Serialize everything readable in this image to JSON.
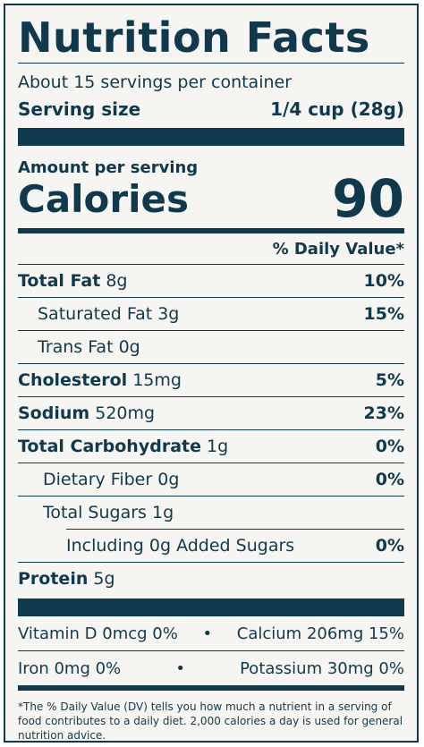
{
  "title": "Nutrition Facts",
  "servings_per_container": "About 15 servings per container",
  "serving_size": {
    "label": "Serving size",
    "value": "1/4 cup (28g)"
  },
  "amount_per_serving": "Amount per serving",
  "calories": {
    "label": "Calories",
    "value": "90"
  },
  "daily_value_header": "% Daily Value*",
  "nutrients": [
    {
      "name": "Total Fat",
      "amount": "8g",
      "dv": "10%"
    },
    {
      "name": "Saturated Fat",
      "amount": "3g",
      "dv": "15%"
    },
    {
      "name": "Trans Fat",
      "amount": "0g",
      "dv": ""
    },
    {
      "name": "Cholesterol",
      "amount": "15mg",
      "dv": "5%"
    },
    {
      "name": "Sodium",
      "amount": "520mg",
      "dv": "23%"
    },
    {
      "name": "Total Carbohydrate",
      "amount": "1g",
      "dv": "0%"
    },
    {
      "name": "Dietary Fiber",
      "amount": "0g",
      "dv": "0%"
    },
    {
      "name": "Total Sugars",
      "amount": "1g",
      "dv": ""
    },
    {
      "name": "Including 0g Added Sugars",
      "amount": "",
      "dv": "0%"
    },
    {
      "name": "Protein",
      "amount": "5g",
      "dv": ""
    }
  ],
  "vitamins": [
    {
      "left": "Vitamin D 0mcg 0%",
      "right": "Calcium 206mg 15%"
    },
    {
      "left": "Iron 0mg 0%",
      "right": "Potassium 30mg 0%"
    }
  ],
  "separator": "•",
  "footnote": "*The % Daily Value (DV) tells you how much a nutrient in a serving of food contributes to a daily diet. 2,000 calories a day is used for general nutrition advice.",
  "colors": {
    "ink": "#0f3a4d",
    "background": "#f7f5f1"
  }
}
